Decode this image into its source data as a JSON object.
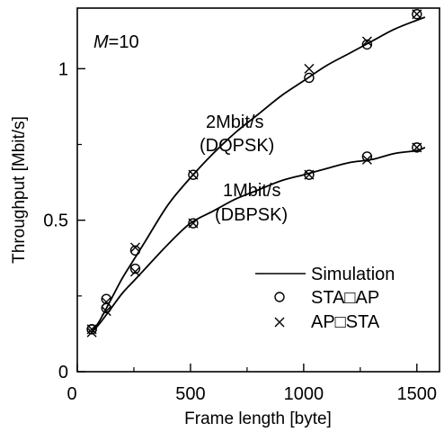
{
  "chart_data": {
    "type": "line",
    "xlabel": "Frame length [byte]",
    "ylabel": "Throughput [Mbit/s]",
    "xlim": [
      0,
      1600
    ],
    "ylim": [
      0,
      1.2
    ],
    "xticks": [
      "0",
      "500",
      "1000",
      "1500"
    ],
    "yticks": [
      "0",
      "0.5",
      "1"
    ],
    "xtick_values": [
      0,
      500,
      1000,
      1500
    ],
    "ytick_values": [
      0,
      0.5,
      1
    ],
    "grid": false,
    "legend_placement": "bottom-right",
    "parameter_label": {
      "symbol": "M",
      "rest": "=10"
    },
    "legend": [
      {
        "marker": "line",
        "label": "Simulation"
      },
      {
        "marker": "circle",
        "label": "STA□AP"
      },
      {
        "marker": "cross",
        "label": "AP□STA"
      }
    ],
    "series": [
      {
        "label_line1": "2Mbit/s",
        "label_line2": "(DQPSK)",
        "curve_x": [
          64,
          100,
          150,
          200,
          250,
          300,
          400,
          500,
          600,
          700,
          800,
          900,
          1000,
          1100,
          1200,
          1300,
          1400,
          1500,
          1536
        ],
        "curve_y": [
          0.13,
          0.17,
          0.24,
          0.31,
          0.37,
          0.43,
          0.55,
          0.64,
          0.72,
          0.79,
          0.85,
          0.91,
          0.96,
          1.01,
          1.05,
          1.09,
          1.13,
          1.16,
          1.17
        ],
        "points_x": [
          64,
          128,
          256,
          512,
          1024,
          1280,
          1500
        ],
        "sta_ap": [
          0.14,
          0.24,
          0.4,
          0.65,
          0.97,
          1.08,
          1.18
        ],
        "ap_sta": [
          0.14,
          0.23,
          0.41,
          0.65,
          1.0,
          1.09,
          1.18
        ]
      },
      {
        "label_line1": "1Mbit/s",
        "label_line2": "(DBPSK)",
        "curve_x": [
          64,
          100,
          150,
          200,
          250,
          300,
          400,
          500,
          600,
          700,
          800,
          900,
          1000,
          1100,
          1200,
          1300,
          1400,
          1500,
          1536
        ],
        "curve_y": [
          0.13,
          0.16,
          0.21,
          0.26,
          0.3,
          0.34,
          0.42,
          0.49,
          0.53,
          0.57,
          0.6,
          0.63,
          0.65,
          0.67,
          0.69,
          0.7,
          0.72,
          0.73,
          0.74
        ],
        "points_x": [
          64,
          128,
          256,
          512,
          1024,
          1280,
          1500
        ],
        "sta_ap": [
          0.14,
          0.21,
          0.34,
          0.49,
          0.65,
          0.71,
          0.74
        ],
        "ap_sta": [
          0.13,
          0.2,
          0.33,
          0.49,
          0.65,
          0.7,
          0.74
        ]
      }
    ]
  }
}
